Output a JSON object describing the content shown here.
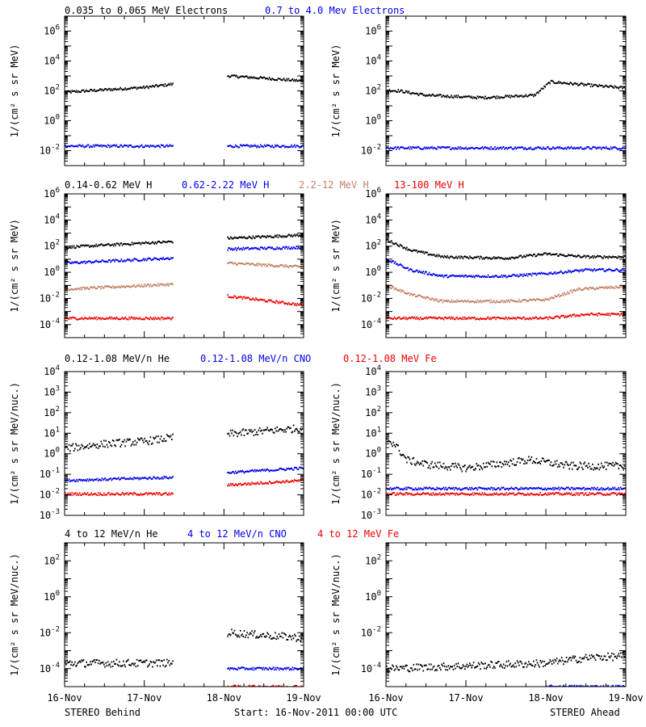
{
  "colors": {
    "black": "#000000",
    "blue": "#0000ee",
    "tan": "#c08060",
    "red": "#ee0000"
  },
  "rows": [
    {
      "titles": [
        {
          "text": "0.035 to 0.065 MeV Electrons",
          "color": "black"
        },
        {
          "text": "0.7 to 4.0 Mev Electrons",
          "color": "blue"
        }
      ]
    },
    {
      "titles": [
        {
          "text": "0.14-0.62 MeV H",
          "color": "black"
        },
        {
          "text": "0.62-2.22 MeV H",
          "color": "blue"
        },
        {
          "text": "2.2-12 MeV H",
          "color": "tan"
        },
        {
          "text": "13-100 MeV H",
          "color": "red"
        }
      ]
    },
    {
      "titles": [
        {
          "text": "0.12-1.08 MeV/n He",
          "color": "black"
        },
        {
          "text": "0.12-1.08 MeV/n CNO",
          "color": "blue"
        },
        {
          "text": "0.12-1.08 MeV Fe",
          "color": "red"
        }
      ]
    },
    {
      "titles": [
        {
          "text": "4 to 12 MeV/n He",
          "color": "black"
        },
        {
          "text": "4 to 12 MeV/n CNO",
          "color": "blue"
        },
        {
          "text": "4 to 12 MeV Fe",
          "color": "red"
        }
      ]
    }
  ],
  "footer": {
    "left": "STEREO Behind",
    "center": "Start: 16-Nov-2011 00:00 UTC",
    "right": "STEREO Ahead"
  },
  "chart_data": [
    {
      "type": "scatter",
      "panel": "behind-electrons",
      "ylabel": "1/(cm² s sr MeV)",
      "ylim_log10": [
        -3,
        7
      ],
      "yticks_log10": [
        -2,
        0,
        2,
        4,
        6
      ],
      "xlim_days": [
        0,
        3
      ],
      "xticks": [
        "16-Nov",
        "17-Nov",
        "18-Nov",
        "19-Nov"
      ],
      "series": [
        {
          "color": "black",
          "segments": [
            {
              "x": [
                0,
                0.4,
                1.0,
                1.35
              ],
              "y": [
                80,
                110,
                170,
                280
              ]
            },
            {
              "x": [
                2.04,
                2.5,
                3.0
              ],
              "y": [
                1000,
                700,
                450
              ]
            }
          ]
        },
        {
          "color": "blue",
          "segments": [
            {
              "x": [
                0,
                1.35
              ],
              "y": [
                0.02,
                0.02
              ]
            },
            {
              "x": [
                2.04,
                3.0
              ],
              "y": [
                0.02,
                0.02
              ]
            }
          ]
        }
      ]
    },
    {
      "type": "scatter",
      "panel": "ahead-electrons",
      "ylabel": "1/(cm² s sr MeV)",
      "ylim_log10": [
        -3,
        7
      ],
      "yticks_log10": [
        -2,
        0,
        2,
        4,
        6
      ],
      "xlim_days": [
        0,
        3
      ],
      "xticks": [
        "16-Nov",
        "17-Nov",
        "18-Nov",
        "19-Nov"
      ],
      "series": [
        {
          "color": "black",
          "segments": [
            {
              "x": [
                0,
                0.15,
                0.5,
                1.2,
                1.85,
                2.05,
                2.5,
                3.0
              ],
              "y": [
                110,
                100,
                50,
                35,
                50,
                400,
                250,
                150
              ]
            }
          ]
        },
        {
          "color": "blue",
          "segments": [
            {
              "x": [
                0,
                3.0
              ],
              "y": [
                0.015,
                0.015
              ]
            }
          ]
        }
      ]
    },
    {
      "type": "scatter",
      "panel": "behind-protons",
      "ylabel": "1/(cm² s sr MeV)",
      "ylim_log10": [
        -5,
        6
      ],
      "yticks_log10": [
        -4,
        -2,
        0,
        2,
        4,
        6
      ],
      "xlim_days": [
        0,
        3
      ],
      "xticks": [
        "16-Nov",
        "17-Nov",
        "18-Nov",
        "19-Nov"
      ],
      "series": [
        {
          "color": "black",
          "segments": [
            {
              "x": [
                0,
                0.5,
                1.35
              ],
              "y": [
                80,
                120,
                220
              ]
            },
            {
              "x": [
                2.04,
                3.0
              ],
              "y": [
                400,
                700
              ]
            }
          ]
        },
        {
          "color": "blue",
          "segments": [
            {
              "x": [
                0,
                0.5,
                1.35
              ],
              "y": [
                5,
                7,
                12
              ]
            },
            {
              "x": [
                2.04,
                3.0
              ],
              "y": [
                60,
                80
              ]
            }
          ]
        },
        {
          "color": "tan",
          "segments": [
            {
              "x": [
                0,
                0.5,
                1.35
              ],
              "y": [
                0.05,
                0.07,
                0.12
              ]
            },
            {
              "x": [
                2.04,
                3.0
              ],
              "y": [
                5,
                2.5
              ]
            }
          ]
        },
        {
          "color": "red",
          "segments": [
            {
              "x": [
                0,
                1.35
              ],
              "y": [
                0.0003,
                0.0003
              ]
            },
            {
              "x": [
                2.04,
                3.0
              ],
              "y": [
                0.015,
                0.003
              ]
            }
          ]
        }
      ]
    },
    {
      "type": "scatter",
      "panel": "ahead-protons",
      "ylabel": "1/(cm² s sr MeV)",
      "ylim_log10": [
        -5,
        6
      ],
      "yticks_log10": [
        -4,
        -2,
        0,
        2,
        4,
        6
      ],
      "xlim_days": [
        0,
        3
      ],
      "xticks": [
        "16-Nov",
        "17-Nov",
        "18-Nov",
        "19-Nov"
      ],
      "series": [
        {
          "color": "black",
          "segments": [
            {
              "x": [
                0,
                0.3,
                0.7,
                1.5,
                2.0,
                2.5,
                3.0
              ],
              "y": [
                300,
                50,
                15,
                12,
                25,
                15,
                15
              ]
            }
          ]
        },
        {
          "color": "blue",
          "segments": [
            {
              "x": [
                0,
                0.3,
                0.7,
                1.5,
                2.0,
                2.5,
                3.0
              ],
              "y": [
                10,
                1.5,
                0.5,
                0.5,
                0.8,
                1.5,
                1.5
              ]
            }
          ]
        },
        {
          "color": "tan",
          "segments": [
            {
              "x": [
                0,
                0.3,
                0.7,
                1.5,
                2.0,
                2.4,
                3.0
              ],
              "y": [
                0.1,
                0.02,
                0.006,
                0.006,
                0.008,
                0.05,
                0.08
              ]
            }
          ]
        },
        {
          "color": "red",
          "segments": [
            {
              "x": [
                0,
                2.0,
                2.5,
                3.0
              ],
              "y": [
                0.0003,
                0.0003,
                0.0006,
                0.0006
              ]
            }
          ]
        }
      ]
    },
    {
      "type": "scatter",
      "panel": "behind-ions-low",
      "ylabel": "1/(cm² s sr MeV/nuc.)",
      "ylim_log10": [
        -3,
        4
      ],
      "yticks_log10": [
        -3,
        -2,
        -1,
        0,
        1,
        2,
        3,
        4
      ],
      "xlim_days": [
        0,
        3
      ],
      "xticks": [
        "16-Nov",
        "17-Nov",
        "18-Nov",
        "19-Nov"
      ],
      "series": [
        {
          "color": "black",
          "segments": [
            {
              "x": [
                0,
                0.5,
                1.0,
                1.35
              ],
              "y": [
                1.8,
                3,
                4,
                6
              ]
            },
            {
              "x": [
                2.04,
                3.0
              ],
              "y": [
                9,
                18
              ]
            }
          ]
        },
        {
          "color": "blue",
          "segments": [
            {
              "x": [
                0,
                1.35
              ],
              "y": [
                0.05,
                0.07
              ]
            },
            {
              "x": [
                2.04,
                3.0
              ],
              "y": [
                0.12,
                0.2
              ]
            }
          ]
        },
        {
          "color": "red",
          "segments": [
            {
              "x": [
                0,
                1.35
              ],
              "y": [
                0.011,
                0.011
              ]
            },
            {
              "x": [
                2.04,
                3.0
              ],
              "y": [
                0.03,
                0.05
              ]
            }
          ]
        }
      ]
    },
    {
      "type": "scatter",
      "panel": "ahead-ions-low",
      "ylabel": "1/(cm² s sr MeV/nuc.)",
      "ylim_log10": [
        -3,
        4
      ],
      "yticks_log10": [
        -3,
        -2,
        -1,
        0,
        1,
        2,
        3,
        4
      ],
      "xlim_days": [
        0,
        3
      ],
      "xticks": [
        "16-Nov",
        "17-Nov",
        "18-Nov",
        "19-Nov"
      ],
      "series": [
        {
          "color": "black",
          "segments": [
            {
              "x": [
                0,
                0.1,
                0.25,
                0.5,
                1.0,
                1.8,
                2.3,
                3.0
              ],
              "y": [
                5,
                3,
                0.5,
                0.3,
                0.2,
                0.5,
                0.25,
                0.25
              ]
            }
          ]
        },
        {
          "color": "blue",
          "segments": [
            {
              "x": [
                0,
                3.0
              ],
              "y": [
                0.02,
                0.02
              ]
            }
          ]
        },
        {
          "color": "red",
          "segments": [
            {
              "x": [
                0,
                3.0
              ],
              "y": [
                0.011,
                0.011
              ]
            }
          ]
        }
      ]
    },
    {
      "type": "scatter",
      "panel": "behind-ions-high",
      "ylabel": "1/(cm² s sr MeV/nuc.)",
      "ylim_log10": [
        -5,
        3
      ],
      "yticks_log10": [
        -4,
        -2,
        0,
        2
      ],
      "xlim_days": [
        0,
        3
      ],
      "xticks": [
        "16-Nov",
        "17-Nov",
        "18-Nov",
        "19-Nov"
      ],
      "series": [
        {
          "color": "black",
          "segments": [
            {
              "x": [
                0,
                1.35
              ],
              "y": [
                0.0002,
                0.0002
              ]
            },
            {
              "x": [
                2.04,
                3.0
              ],
              "y": [
                0.01,
                0.005
              ]
            }
          ]
        },
        {
          "color": "blue",
          "segments": [
            {
              "x": [
                2.04,
                3.0
              ],
              "y": [
                0.0001,
                0.0001
              ]
            }
          ]
        },
        {
          "color": "red",
          "segments": [
            {
              "x": [
                2.04,
                3.0
              ],
              "y": [
                1e-05,
                1e-05
              ]
            }
          ]
        }
      ]
    },
    {
      "type": "scatter",
      "panel": "ahead-ions-high",
      "ylabel": "1/(cm² s sr MeV/nuc.)",
      "ylim_log10": [
        -5,
        3
      ],
      "yticks_log10": [
        -4,
        -2,
        0,
        2
      ],
      "xlim_days": [
        0,
        3
      ],
      "xticks": [
        "16-Nov",
        "17-Nov",
        "18-Nov",
        "19-Nov"
      ],
      "series": [
        {
          "color": "black",
          "segments": [
            {
              "x": [
                0,
                2.0,
                2.5,
                3.0
              ],
              "y": [
                0.0001,
                0.0002,
                0.0004,
                0.0005
              ]
            }
          ]
        },
        {
          "color": "blue",
          "segments": [
            {
              "x": [
                2.0,
                3.0
              ],
              "y": [
                1e-05,
                1e-05
              ]
            }
          ]
        }
      ]
    }
  ]
}
